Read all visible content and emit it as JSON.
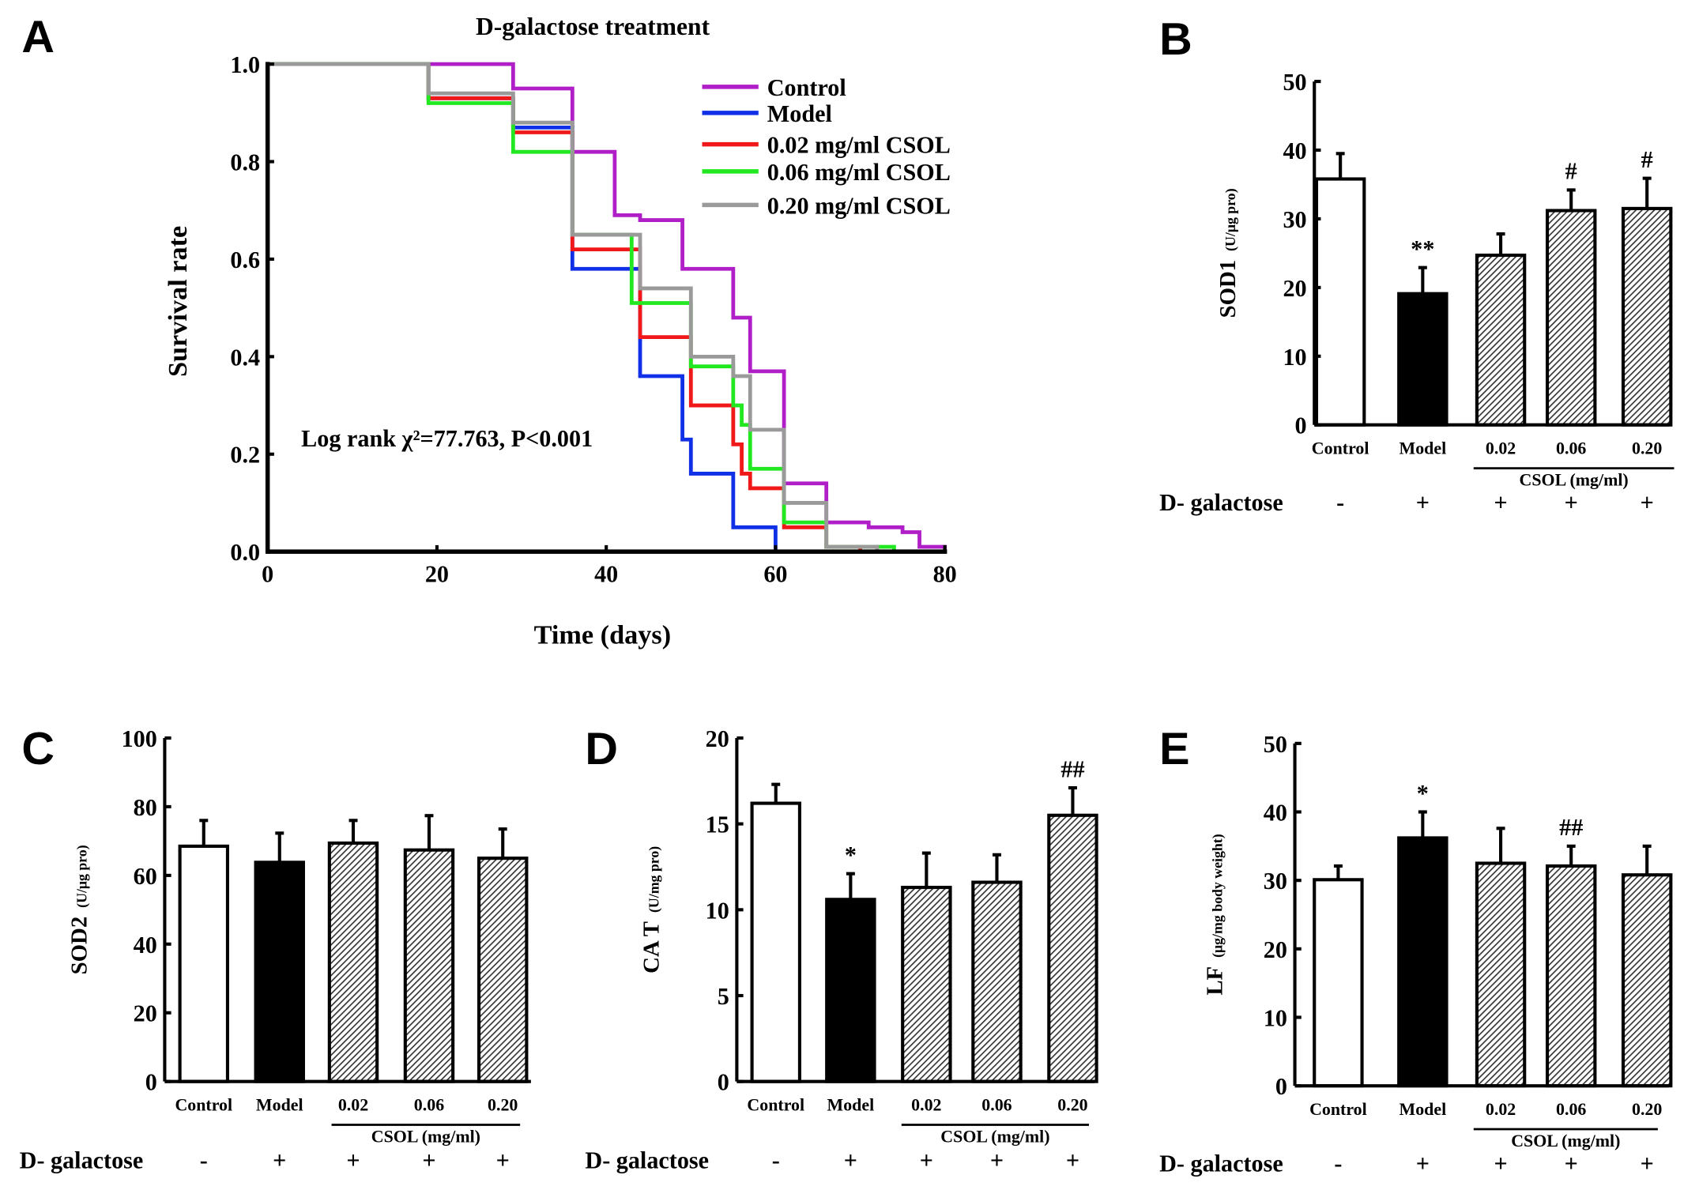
{
  "chart_data": [
    {
      "panel": "A",
      "type": "line",
      "subtype": "kaplan-meier-step",
      "title": "D-galactose treatment",
      "xlabel": "Time (days)",
      "ylabel": "Survival rate",
      "xlim": [
        0,
        80
      ],
      "ylim": [
        0,
        1.0
      ],
      "xticks": [
        "0",
        "20",
        "40",
        "60",
        "80"
      ],
      "yticks": [
        "0.0",
        "0.2",
        "0.4",
        "0.6",
        "0.8",
        "1.0"
      ],
      "annotation": "Log rank χ²=77.763, P<0.001",
      "legend_position": "top-right",
      "series": [
        {
          "name": "Control",
          "color": "#b01ec8",
          "steps": [
            [
              0,
              1.0
            ],
            [
              29,
              0.95
            ],
            [
              36,
              0.82
            ],
            [
              41,
              0.69
            ],
            [
              44,
              0.68
            ],
            [
              49,
              0.58
            ],
            [
              55,
              0.48
            ],
            [
              57,
              0.37
            ],
            [
              61,
              0.14
            ],
            [
              66,
              0.06
            ],
            [
              71,
              0.05
            ],
            [
              75,
              0.04
            ],
            [
              77,
              0.01
            ],
            [
              80,
              0.0
            ]
          ]
        },
        {
          "name": "Model",
          "color": "#1030e8",
          "steps": [
            [
              0,
              1.0
            ],
            [
              19,
              0.93
            ],
            [
              29,
              0.87
            ],
            [
              36,
              0.58
            ],
            [
              44,
              0.36
            ],
            [
              49,
              0.23
            ],
            [
              50,
              0.16
            ],
            [
              55,
              0.05
            ],
            [
              60,
              0.0
            ]
          ]
        },
        {
          "name": "0.02 mg/ml CSOL",
          "color": "#f01818",
          "steps": [
            [
              0,
              1.0
            ],
            [
              19,
              0.93
            ],
            [
              29,
              0.86
            ],
            [
              36,
              0.62
            ],
            [
              44,
              0.44
            ],
            [
              50,
              0.3
            ],
            [
              55,
              0.22
            ],
            [
              56,
              0.16
            ],
            [
              57,
              0.13
            ],
            [
              61,
              0.05
            ],
            [
              66,
              0.01
            ],
            [
              70,
              0.0
            ]
          ]
        },
        {
          "name": "0.06 mg/ml CSOL",
          "color": "#22e822",
          "steps": [
            [
              0,
              1.0
            ],
            [
              19,
              0.92
            ],
            [
              29,
              0.82
            ],
            [
              36,
              0.65
            ],
            [
              43,
              0.51
            ],
            [
              50,
              0.38
            ],
            [
              55,
              0.3
            ],
            [
              56,
              0.26
            ],
            [
              57,
              0.17
            ],
            [
              61,
              0.06
            ],
            [
              66,
              0.01
            ],
            [
              74,
              0.0
            ]
          ]
        },
        {
          "name": "0.20 mg/ml CSOL",
          "color": "#9a9a9a",
          "steps": [
            [
              0,
              1.0
            ],
            [
              19,
              0.94
            ],
            [
              29,
              0.88
            ],
            [
              36,
              0.65
            ],
            [
              44,
              0.54
            ],
            [
              50,
              0.4
            ],
            [
              55,
              0.36
            ],
            [
              57,
              0.25
            ],
            [
              61,
              0.1
            ],
            [
              66,
              0.01
            ],
            [
              72,
              0.0
            ]
          ]
        }
      ]
    },
    {
      "panel": "B",
      "type": "bar",
      "ylabel": "SOD1",
      "yunit": "(U/μg pro)",
      "ylim": [
        0,
        50
      ],
      "yticks": [
        "0",
        "10",
        "20",
        "30",
        "40",
        "50"
      ],
      "categories": [
        "Control",
        "Model",
        "0.02",
        "0.06",
        "0.20"
      ],
      "values": [
        35.8,
        19.1,
        24.7,
        31.2,
        31.5
      ],
      "errors": [
        3.7,
        3.8,
        3.1,
        3.0,
        4.4
      ],
      "significance": [
        "",
        "**",
        "",
        "#",
        "#"
      ],
      "group_label": "CSOL (mg/ml)",
      "treatment_label": "D- galactose",
      "treatment": [
        "-",
        "+",
        "+",
        "+",
        "+"
      ]
    },
    {
      "panel": "C",
      "type": "bar",
      "ylabel": "SOD2",
      "yunit": "(U/μg pro)",
      "ylim": [
        0,
        100
      ],
      "yticks": [
        "0",
        "20",
        "40",
        "60",
        "80",
        "100"
      ],
      "categories": [
        "Control",
        "Model",
        "0.02",
        "0.06",
        "0.20"
      ],
      "values": [
        68.5,
        63.8,
        69.4,
        67.4,
        65.0
      ],
      "errors": [
        7.5,
        8.5,
        6.6,
        10.0,
        8.5
      ],
      "significance": [
        "",
        "",
        "",
        "",
        ""
      ],
      "group_label": "CSOL (mg/ml)",
      "treatment_label": "D- galactose",
      "treatment": [
        "-",
        "+",
        "+",
        "+",
        "+"
      ]
    },
    {
      "panel": "D",
      "type": "bar",
      "ylabel": "CA T",
      "yunit": "(U/mg pro)",
      "ylim": [
        0,
        20
      ],
      "yticks": [
        "0",
        "5",
        "10",
        "15",
        "20"
      ],
      "categories": [
        "Control",
        "Model",
        "0.02",
        "0.06",
        "0.20"
      ],
      "values": [
        16.2,
        10.6,
        11.3,
        11.6,
        15.5
      ],
      "errors": [
        1.1,
        1.5,
        2.0,
        1.6,
        1.6
      ],
      "significance": [
        "",
        "*",
        "",
        "",
        "##"
      ],
      "group_label": "CSOL (mg/ml)",
      "treatment_label": "D- galactose",
      "treatment": [
        "-",
        "+",
        "+",
        "+",
        "+"
      ]
    },
    {
      "panel": "E",
      "type": "bar",
      "ylabel": "LF",
      "yunit": "(μg/mg body weight)",
      "ylim": [
        0,
        50
      ],
      "yticks": [
        "0",
        "10",
        "20",
        "30",
        "40",
        "50"
      ],
      "categories": [
        "Control",
        "Model",
        "0.02",
        "0.06",
        "0.20"
      ],
      "values": [
        30.1,
        36.2,
        32.5,
        32.1,
        30.8
      ],
      "errors": [
        2.0,
        3.8,
        5.1,
        2.9,
        4.2
      ],
      "significance": [
        "",
        "*",
        "",
        "##",
        ""
      ],
      "group_label": "CSOL (mg/ml)",
      "treatment_label": "D- galactose",
      "treatment": [
        "-",
        "+",
        "+",
        "+",
        "+"
      ]
    }
  ]
}
